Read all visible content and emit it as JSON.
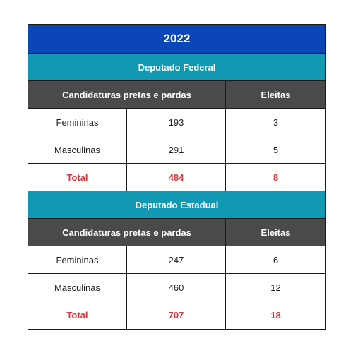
{
  "year": "2022",
  "sections": [
    {
      "title": "Deputado Federal",
      "headers": [
        "Candidaturas pretas e pardas",
        "Eleitas"
      ],
      "rows": [
        {
          "label": "Femininas",
          "candidaturas": "193",
          "eleitas": "3"
        },
        {
          "label": "Masculinas",
          "candidaturas": "291",
          "eleitas": "5"
        },
        {
          "label": "Total",
          "candidaturas": "484",
          "eleitas": "8"
        }
      ]
    },
    {
      "title": "Deputado Estadual",
      "headers": [
        "Candidaturas pretas e pardas",
        "Eleitas"
      ],
      "rows": [
        {
          "label": "Femininas",
          "candidaturas": "247",
          "eleitas": "6"
        },
        {
          "label": "Masculinas",
          "candidaturas": "460",
          "eleitas": "12"
        },
        {
          "label": "Total",
          "candidaturas": "707",
          "eleitas": "18"
        }
      ]
    }
  ],
  "colors": {
    "year_bg": "#0a46b8",
    "section_bg": "#1199b3",
    "header_bg": "#4a4a4a",
    "total_text": "#e0333a"
  }
}
